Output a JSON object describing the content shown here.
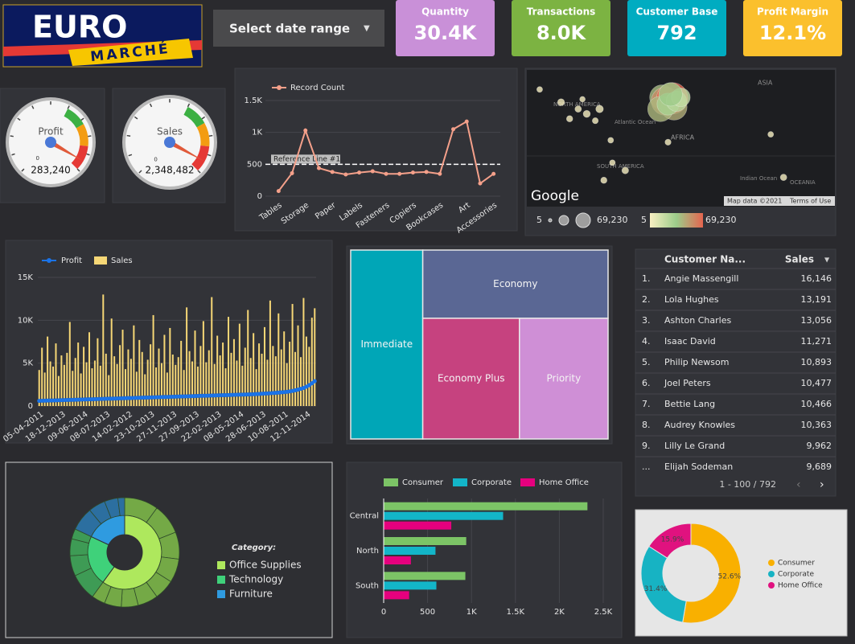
{
  "header": {
    "logo_top": "EURO",
    "logo_bottom": "MARCHÉ",
    "date_selector": "Select date range"
  },
  "kpis": [
    {
      "label": "Quantity",
      "value": "30.4K",
      "color": "#c990d8"
    },
    {
      "label": "Transactions",
      "value": "8.0K",
      "color": "#7cb342"
    },
    {
      "label": "Customer Base",
      "value": "792",
      "color": "#00acc1"
    },
    {
      "label": "Profit Margin",
      "value": "12.1%",
      "color": "#fbc02d"
    }
  ],
  "chart_data": [
    {
      "type": "gauge",
      "title": "Profit",
      "value": 283240,
      "value_label": "283,240",
      "range": [
        0,
        300000
      ]
    },
    {
      "type": "gauge",
      "title": "Sales",
      "value": 2348482,
      "value_label": "2,348,482",
      "range": [
        0,
        2500000
      ]
    },
    {
      "type": "line",
      "categories": [
        "Tables",
        null,
        "Storage",
        null,
        "Paper",
        null,
        "Labels",
        null,
        "Fasteners",
        null,
        "Copiers",
        null,
        "Bookcases",
        null,
        "Art",
        null,
        "Accessories"
      ],
      "series": [
        {
          "name": "Record Count",
          "color": "#f4a08a",
          "values": [
            80,
            360,
            1030,
            440,
            380,
            340,
            370,
            390,
            350,
            350,
            370,
            380,
            350,
            1050,
            1170,
            200,
            350
          ]
        }
      ],
      "ylim": [
        0,
        1500
      ],
      "yticks": [
        0,
        500,
        {
          "value": 1000,
          "label": "1K"
        },
        {
          "value": 1500,
          "label": "1.5K"
        }
      ],
      "grid": true,
      "reference_line": {
        "value": 500,
        "label": "Reference Line #1"
      }
    },
    {
      "type": "bubble_map",
      "xlim": [
        -160,
        200
      ],
      "ylim": [
        -60,
        80
      ],
      "lon": [
        -2,
        2,
        10,
        12,
        -4,
        5,
        15,
        20,
        8,
        -120,
        -100,
        -90,
        -75,
        -80,
        -110,
        -145,
        -60,
        -45,
        -70,
        -62,
        5,
        140,
        125,
        -95
      ],
      "lat": [
        52,
        48,
        51,
        42,
        40,
        45,
        48,
        52,
        55,
        47,
        40,
        35,
        40,
        28,
        30,
        60,
        -15,
        -23,
        -33,
        8,
        6,
        -30,
        14,
        50
      ],
      "size": [
        40000,
        55000,
        69230,
        45000,
        42000,
        30000,
        25000,
        20000,
        35000,
        800,
        600,
        900,
        1200,
        400,
        500,
        300,
        300,
        700,
        500,
        300,
        400,
        600,
        300,
        250
      ],
      "size_legend": [
        5,
        {
          "value": 69230,
          "label": "69,230"
        }
      ],
      "color_legend": [
        5,
        {
          "value": 69230,
          "label": "69,230"
        }
      ],
      "color_scale": [
        "#f8efc2",
        "#9ccc8a",
        "#e5654f"
      ],
      "labels": [
        "NORTH AMERICA",
        "Atlantic Ocean",
        "AFRICA",
        "SOUTH AMERICA",
        "ASIA",
        "Indian Ocean",
        "OCEANIA"
      ],
      "attribution": "Google",
      "map_data": "Map data ©2021",
      "terms": "Terms of Use"
    },
    {
      "type": "bar_line",
      "categories": [
        "05-04-2011",
        null,
        null,
        null,
        null,
        null,
        null,
        null,
        "18-12-2013",
        null,
        null,
        null,
        null,
        null,
        null,
        null,
        "09-06-2014",
        null,
        null,
        null,
        null,
        null,
        null,
        null,
        "08-07-2013",
        null,
        null,
        null,
        null,
        null,
        null,
        null,
        "14-02-2012",
        null,
        null,
        null,
        null,
        null,
        null,
        null,
        "23-10-2013",
        null,
        null,
        null,
        null,
        null,
        null,
        null,
        "27-11-2013",
        null,
        null,
        null,
        null,
        null,
        null,
        null,
        "27-09-2013",
        null,
        null,
        null,
        null,
        null,
        null,
        null,
        "22-02-2013",
        null,
        null,
        null,
        null,
        null,
        null,
        null,
        "08-05-2014",
        null,
        null,
        null,
        null,
        null,
        null,
        null,
        "28-06-2013",
        null,
        null,
        null,
        null,
        null,
        null,
        null,
        "10-08-2011",
        null,
        null,
        null,
        null,
        null,
        null,
        null,
        "12-11-2014",
        null,
        null,
        null
      ],
      "series": [
        {
          "name": "Profit",
          "type": "line",
          "color": "#1a73e8",
          "values": [
            600,
            610,
            620,
            630,
            640,
            650,
            660,
            670,
            680,
            690,
            700,
            710,
            720,
            730,
            740,
            750,
            760,
            770,
            780,
            790,
            800,
            810,
            820,
            830,
            840,
            850,
            860,
            870,
            880,
            890,
            900,
            910,
            920,
            930,
            940,
            950,
            960,
            970,
            980,
            990,
            1000,
            1010,
            1020,
            1030,
            1040,
            1050,
            1060,
            1070,
            1080,
            1090,
            1100,
            1110,
            1120,
            1130,
            1140,
            1150,
            1160,
            1170,
            1180,
            1190,
            1200,
            1210,
            1220,
            1230,
            1240,
            1250,
            1260,
            1270,
            1280,
            1290,
            1300,
            1310,
            1320,
            1330,
            1340,
            1350,
            1360,
            1370,
            1390,
            1410,
            1430,
            1450,
            1470,
            1490,
            1510,
            1530,
            1560,
            1590,
            1620,
            1650,
            1700,
            1760,
            1830,
            1910,
            2000,
            2100,
            2250,
            2420,
            2650,
            2900
          ]
        },
        {
          "name": "Sales",
          "type": "bar",
          "color": "#f6d776",
          "values": [
            4200,
            6800,
            3900,
            8100,
            5200,
            4600,
            7300,
            3500,
            5900,
            4800,
            6200,
            9800,
            4100,
            5600,
            7400,
            3800,
            6900,
            5100,
            8600,
            4400,
            5300,
            7900,
            4700,
            13000,
            6100,
            3600,
            10200,
            5800,
            4900,
            7100,
            8900,
            4300,
            6600,
            5500,
            9400,
            4000,
            7700,
            6300,
            3700,
            5400,
            7200,
            10600,
            4500,
            6700,
            5000,
            8300,
            3900,
            9100,
            6000,
            4800,
            5700,
            7600,
            4200,
            11500,
            6400,
            5200,
            8800,
            4600,
            7000,
            9900,
            5100,
            6500,
            12700,
            4900,
            8200,
            5900,
            7400,
            4400,
            10400,
            6200,
            7800,
            5300,
            9600,
            4700,
            6800,
            11200,
            5600,
            8500,
            4300,
            7300,
            6100,
            9200,
            5400,
            12300,
            7000,
            5800,
            10800,
            6600,
            8700,
            5000,
            7500,
            11900,
            6300,
            9400,
            5700,
            12600,
            8100,
            6900,
            10300,
            11400
          ]
        }
      ],
      "ylim": [
        0,
        15000
      ],
      "yticks": [
        0,
        {
          "value": 5000,
          "label": "5K"
        },
        {
          "value": 10000,
          "label": "10K"
        },
        {
          "value": 15000,
          "label": "15K"
        }
      ],
      "grid": true
    },
    {
      "type": "treemap",
      "categories": [
        "Immediate",
        "Economy",
        "Economy Plus",
        "Priority"
      ],
      "values": [
        28,
        26,
        24,
        22
      ],
      "colors": [
        "#00a6b7",
        "#5a6794",
        "#c6427f",
        "#cf8fd6"
      ]
    },
    {
      "type": "sunburst",
      "legend_title": "Category:",
      "series": [
        {
          "name": "Office Supplies",
          "color": "#aee85d",
          "outer_color": "#74a946",
          "value": 60,
          "children": [
            10,
            9,
            8,
            7,
            6,
            6,
            5,
            5,
            4
          ]
        },
        {
          "name": "Technology",
          "color": "#3fd17a",
          "outer_color": "#3e9b55",
          "value": 22,
          "children": [
            8,
            6,
            5,
            3
          ]
        },
        {
          "name": "Furniture",
          "color": "#2f9be0",
          "outer_color": "#2c6fa0",
          "value": 18,
          "children": [
            7,
            5,
            4,
            2
          ]
        }
      ]
    },
    {
      "type": "hbar",
      "categories": [
        "Central",
        "North",
        "South"
      ],
      "series": [
        {
          "name": "Consumer",
          "color": "#7cc466",
          "values": [
            2320,
            940,
            930
          ]
        },
        {
          "name": "Corporate",
          "color": "#13b5c8",
          "values": [
            1360,
            590,
            600
          ]
        },
        {
          "name": "Home Office",
          "color": "#e6007e",
          "values": [
            770,
            310,
            290
          ]
        }
      ],
      "xlim": [
        0,
        2500
      ],
      "xticks": [
        0,
        500,
        {
          "value": 1000,
          "label": "1K"
        },
        {
          "value": 1500,
          "label": "1.5K"
        },
        {
          "value": 2000,
          "label": "2K"
        },
        {
          "value": 2500,
          "label": "2.5K"
        }
      ],
      "grid": true
    },
    {
      "type": "donut",
      "categories": [
        "Consumer",
        "Corporate",
        "Home Office"
      ],
      "values": [
        52.6,
        31.4,
        15.9
      ],
      "value_labels": [
        "52.6%",
        "31.4%",
        "15.9%"
      ],
      "colors": [
        "#f9b000",
        "#17b3c3",
        "#e0127f"
      ]
    }
  ],
  "table": {
    "columns": [
      "Customer Na...",
      "Sales"
    ],
    "rows": [
      [
        "1.",
        "Angie Massengill",
        "16,146"
      ],
      [
        "2.",
        "Lola Hughes",
        "13,191"
      ],
      [
        "3.",
        "Ashton Charles",
        "13,056"
      ],
      [
        "4.",
        "Isaac David",
        "11,271"
      ],
      [
        "5.",
        "Philip Newsom",
        "10,893"
      ],
      [
        "6.",
        "Joel Peters",
        "10,477"
      ],
      [
        "7.",
        "Bettie Lang",
        "10,466"
      ],
      [
        "8.",
        "Audrey Knowles",
        "10,363"
      ],
      [
        "9.",
        "Lilly Le Grand",
        "9,962"
      ],
      [
        "...",
        "Elijah Sodeman",
        "9,689"
      ]
    ],
    "pagination": "1 - 100 / 792"
  }
}
